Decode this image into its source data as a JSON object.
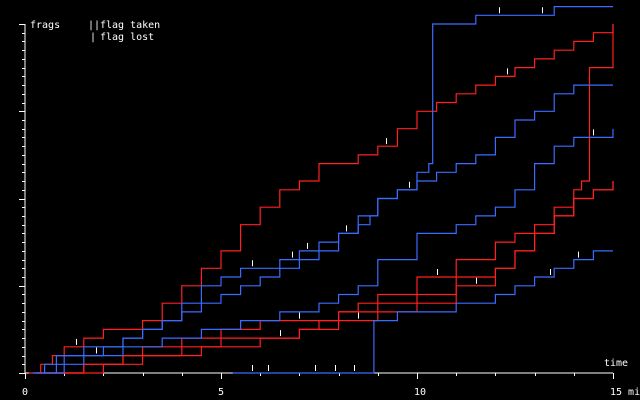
{
  "chart_data": {
    "type": "line",
    "ylabel": "frags",
    "xlabel": "time",
    "xlim": [
      0,
      15
    ],
    "x_ticks": [
      {
        "value": 0,
        "label": "0"
      },
      {
        "value": 5,
        "label": "5"
      },
      {
        "value": 10,
        "label": "10"
      },
      {
        "value": 15,
        "label": "15 min"
      }
    ],
    "ylim": [
      0,
      40
    ],
    "legend": {
      "placement": "top-left",
      "flag_taken": {
        "symbol": "||",
        "label": "flag taken"
      },
      "flag_lost": {
        "symbol": "|",
        "label": "flag lost"
      }
    },
    "colors": {
      "red": "#ff2020",
      "blue": "#3a6cff",
      "axis": "#ffffff",
      "marker": "#ffffff"
    },
    "series": [
      {
        "color": "red",
        "points": [
          [
            0.3,
            0
          ],
          [
            0.4,
            1
          ],
          [
            0.7,
            2
          ],
          [
            1.0,
            3
          ],
          [
            1.5,
            4
          ],
          [
            2.0,
            5
          ],
          [
            3.0,
            6
          ],
          [
            3.5,
            8
          ],
          [
            4.0,
            10
          ],
          [
            4.5,
            12
          ],
          [
            5.0,
            14
          ],
          [
            5.5,
            17
          ],
          [
            6.0,
            19
          ],
          [
            6.5,
            21
          ],
          [
            7.0,
            22
          ],
          [
            7.5,
            24
          ],
          [
            8.0,
            24
          ],
          [
            8.5,
            25
          ],
          [
            9.0,
            26
          ],
          [
            9.5,
            28
          ],
          [
            10.0,
            30
          ],
          [
            10.5,
            31
          ],
          [
            11.0,
            32
          ],
          [
            11.5,
            33
          ],
          [
            12.0,
            34
          ],
          [
            12.5,
            35
          ],
          [
            13.0,
            36
          ],
          [
            13.5,
            37
          ],
          [
            14.0,
            38
          ],
          [
            14.5,
            39
          ],
          [
            15.0,
            40
          ]
        ],
        "flags_taken": [],
        "flags_lost": [
          1.3,
          9.2,
          12.3
        ]
      },
      {
        "color": "red",
        "points": [
          [
            0.2,
            0
          ],
          [
            1.5,
            1
          ],
          [
            2.5,
            2
          ],
          [
            3.0,
            3
          ],
          [
            4.0,
            4
          ],
          [
            5.0,
            5
          ],
          [
            6.0,
            6
          ],
          [
            7.0,
            6
          ],
          [
            8.0,
            7
          ],
          [
            8.5,
            8
          ],
          [
            9.0,
            9
          ],
          [
            10.0,
            11
          ],
          [
            11.0,
            13
          ],
          [
            12.0,
            15
          ],
          [
            12.5,
            16
          ],
          [
            13.0,
            17
          ],
          [
            13.5,
            19
          ],
          [
            14.0,
            21
          ],
          [
            14.2,
            22
          ],
          [
            14.4,
            35
          ],
          [
            15.0,
            40
          ]
        ],
        "flags_taken": [],
        "flags_lost": [
          7.0,
          10.5
        ]
      },
      {
        "color": "red",
        "points": [
          [
            0.5,
            0
          ],
          [
            1.5,
            1
          ],
          [
            2.5,
            2
          ],
          [
            3.5,
            2
          ],
          [
            4.5,
            3
          ],
          [
            5.0,
            4
          ],
          [
            6.0,
            4
          ],
          [
            7.0,
            5
          ],
          [
            7.5,
            6
          ],
          [
            8.0,
            7
          ],
          [
            8.5,
            7
          ],
          [
            9.0,
            8
          ],
          [
            10.0,
            9
          ],
          [
            11.0,
            11
          ],
          [
            12.0,
            12
          ],
          [
            12.5,
            14
          ],
          [
            13.0,
            16
          ],
          [
            13.5,
            18
          ],
          [
            14.0,
            20
          ],
          [
            14.5,
            21
          ],
          [
            15.0,
            22
          ]
        ],
        "flags_taken": [],
        "flags_lost": [
          6.5
        ]
      },
      {
        "color": "red",
        "points": [
          [
            0.1,
            0
          ],
          [
            2.0,
            1
          ],
          [
            3.0,
            2
          ],
          [
            4.0,
            3
          ],
          [
            5.0,
            3
          ],
          [
            6.0,
            4
          ],
          [
            7.0,
            5
          ],
          [
            8.0,
            6
          ],
          [
            9.0,
            7
          ],
          [
            10.0,
            8
          ],
          [
            11.0,
            10
          ],
          [
            12.0,
            12
          ],
          [
            12.5,
            14
          ],
          [
            13.0,
            16
          ],
          [
            13.5,
            18
          ],
          [
            14.0,
            20
          ],
          [
            14.5,
            21
          ],
          [
            15.0,
            22
          ]
        ],
        "flags_taken": [],
        "flags_lost": [
          8.5,
          11.5
        ]
      },
      {
        "color": "blue",
        "points": [
          [
            0.3,
            0
          ],
          [
            0.8,
            2
          ],
          [
            1.5,
            3
          ],
          [
            2.5,
            4
          ],
          [
            3.0,
            5
          ],
          [
            3.5,
            6
          ],
          [
            4.0,
            7
          ],
          [
            4.5,
            8
          ],
          [
            5.0,
            9
          ],
          [
            5.5,
            10
          ],
          [
            6.0,
            11
          ],
          [
            6.5,
            12
          ],
          [
            7.0,
            13
          ],
          [
            7.5,
            14
          ],
          [
            8.0,
            16
          ],
          [
            8.5,
            18
          ],
          [
            9.0,
            20
          ],
          [
            9.5,
            21
          ],
          [
            10.0,
            23
          ],
          [
            10.3,
            24
          ],
          [
            10.4,
            40
          ],
          [
            11.5,
            41
          ],
          [
            12.5,
            41
          ],
          [
            13.5,
            42
          ],
          [
            14.5,
            42
          ],
          [
            15.0,
            42
          ]
        ],
        "flags_taken": [],
        "flags_lost": [
          9.8,
          12.1,
          13.2
        ]
      },
      {
        "color": "blue",
        "points": [
          [
            0.5,
            0
          ],
          [
            1.0,
            1
          ],
          [
            1.5,
            2
          ],
          [
            2.5,
            3
          ],
          [
            3.5,
            4
          ],
          [
            4.5,
            5
          ],
          [
            5.5,
            6
          ],
          [
            6.5,
            7
          ],
          [
            7.5,
            8
          ],
          [
            8.0,
            9
          ],
          [
            8.5,
            10
          ],
          [
            9.0,
            13
          ],
          [
            10.0,
            16
          ],
          [
            11.0,
            17
          ],
          [
            11.5,
            18
          ],
          [
            12.0,
            19
          ],
          [
            12.5,
            21
          ],
          [
            13.0,
            24
          ],
          [
            13.5,
            26
          ],
          [
            14.0,
            27
          ],
          [
            15.0,
            28
          ]
        ],
        "flags_taken": [],
        "flags_lost": [
          1.8,
          14.5
        ]
      },
      {
        "color": "blue",
        "points": [
          [
            0.2,
            0
          ],
          [
            0.5,
            1
          ],
          [
            1.0,
            2
          ],
          [
            2.0,
            3
          ],
          [
            2.5,
            4
          ],
          [
            3.0,
            5
          ],
          [
            3.5,
            6
          ],
          [
            4.0,
            8
          ],
          [
            4.5,
            10
          ],
          [
            5.0,
            11
          ],
          [
            5.5,
            12
          ],
          [
            6.0,
            12
          ],
          [
            6.5,
            13
          ],
          [
            7.0,
            14
          ],
          [
            7.5,
            15
          ],
          [
            8.0,
            16
          ],
          [
            8.5,
            17
          ],
          [
            8.8,
            18
          ],
          [
            9.0,
            20
          ],
          [
            9.5,
            21
          ],
          [
            10.0,
            22
          ],
          [
            10.5,
            23
          ],
          [
            11.0,
            24
          ],
          [
            11.5,
            25
          ],
          [
            12.0,
            27
          ],
          [
            12.5,
            29
          ],
          [
            13.0,
            30
          ],
          [
            13.5,
            32
          ],
          [
            14.0,
            33
          ],
          [
            14.5,
            33
          ],
          [
            15.0,
            33
          ]
        ],
        "flags_taken": [],
        "flags_lost": [
          5.8,
          6.8,
          7.2,
          8.2
        ]
      },
      {
        "color": "blue",
        "points": [
          [
            5.3,
            0
          ],
          [
            6.0,
            0
          ],
          [
            7.0,
            0
          ],
          [
            8.0,
            0
          ],
          [
            8.8,
            0
          ],
          [
            8.9,
            6
          ],
          [
            9.5,
            7
          ],
          [
            10.0,
            7
          ],
          [
            11.0,
            8
          ],
          [
            12.0,
            9
          ],
          [
            12.5,
            10
          ],
          [
            13.0,
            11
          ],
          [
            13.5,
            12
          ],
          [
            14.0,
            13
          ],
          [
            14.5,
            14
          ],
          [
            15.0,
            14
          ]
        ],
        "flags_taken": [],
        "flags_lost": [
          5.8,
          6.2,
          7.4,
          7.9,
          8.4,
          13.4,
          14.1
        ]
      }
    ]
  }
}
